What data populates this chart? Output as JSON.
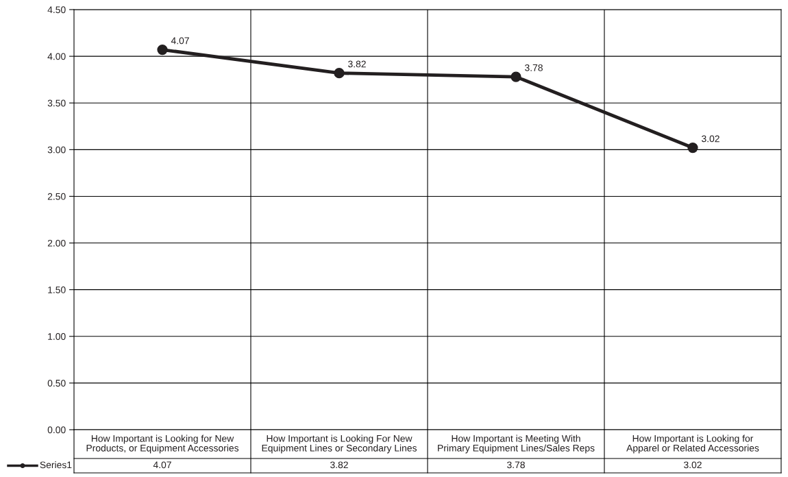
{
  "chart_data": {
    "type": "line",
    "categories": [
      "How Important is Looking for New\nProducts, or Equipment Accessories",
      "How Important is Looking For New\nEquipment Lines or Secondary Lines",
      "How Important is Meeting With\nPrimary Equipment Lines/Sales Reps",
      "How Important is Looking for\nApparel or Related Accessories"
    ],
    "series": [
      {
        "name": "Series1",
        "color": "#231f20",
        "values": [
          4.07,
          3.82,
          3.78,
          3.02
        ],
        "value_labels": [
          "4.07",
          "3.82",
          "3.78",
          "3.02"
        ]
      }
    ],
    "ylim": [
      0,
      4.5
    ],
    "yticks": [
      "0.00",
      "0.50",
      "1.00",
      "1.50",
      "2.00",
      "2.50",
      "3.00",
      "3.50",
      "4.00",
      "4.50"
    ],
    "annotations": [
      "4.07",
      "3.82",
      "3.78",
      "3.02"
    ],
    "grid": true,
    "legend": "bottom",
    "marker": "circle",
    "line_style": "solid",
    "data_labels": true
  }
}
